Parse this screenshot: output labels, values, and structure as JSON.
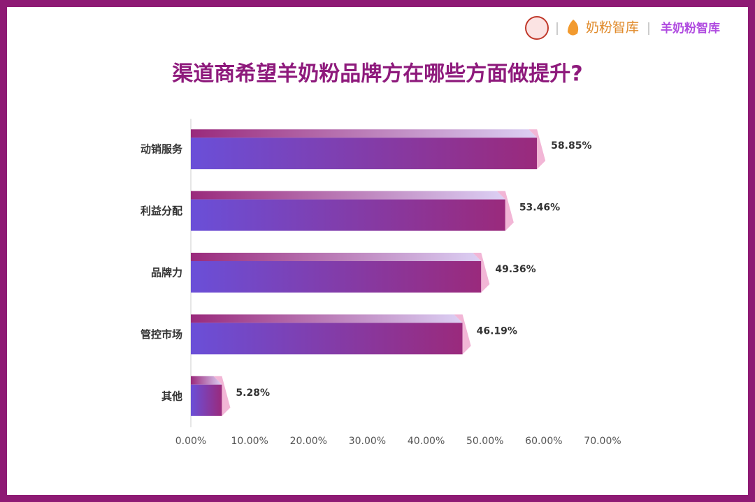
{
  "chart_data": {
    "type": "bar",
    "orientation": "horizontal",
    "title": "渠道商希望羊奶粉品牌方在哪些方面做提升?",
    "brands": [
      "奶粉智库",
      "羊奶粉智库"
    ],
    "categories": [
      "动销服务",
      "利益分配",
      "品牌力",
      "管控市场",
      "其他"
    ],
    "values": [
      58.85,
      53.46,
      49.36,
      46.19,
      5.28
    ],
    "value_labels": [
      "58.85%",
      "53.46%",
      "49.36%",
      "46.19%",
      "5.28%"
    ],
    "xlim": [
      0,
      70
    ],
    "xticks": [
      {
        "value": 0,
        "label": "0.00%"
      },
      {
        "value": 10,
        "label": "10.00%"
      },
      {
        "value": 20,
        "label": "20.00%"
      },
      {
        "value": 30,
        "label": "30.00%"
      },
      {
        "value": 40,
        "label": "40.00%"
      },
      {
        "value": 50,
        "label": "50.00%"
      },
      {
        "value": 60,
        "label": "60.00%"
      },
      {
        "value": 70,
        "label": "70.00%"
      }
    ],
    "colors": {
      "front_start": "#6a4fd8",
      "front_end": "#9a2a7c",
      "top_start": "#9a2a7c",
      "top_end": "#dcd0f4",
      "side": "#f2b6d6"
    }
  }
}
